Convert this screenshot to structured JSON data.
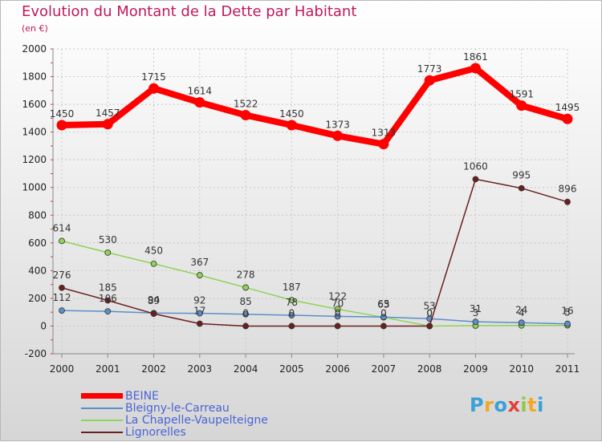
{
  "chart_data": {
    "type": "line",
    "title": "Evolution du Montant de la Dette par Habitant",
    "subtitle": "(en €)",
    "x": [
      "2000",
      "2001",
      "2002",
      "2003",
      "2004",
      "2005",
      "2006",
      "2007",
      "2008",
      "2009",
      "2010",
      "2011"
    ],
    "ylim": [
      -200,
      2000
    ],
    "yticks": [
      -200,
      0,
      200,
      400,
      600,
      800,
      1000,
      1200,
      1400,
      1600,
      1800,
      2000
    ],
    "grid": true,
    "legend_position": "bottom-left",
    "series": [
      {
        "name": "BEINE",
        "color": "#ff0000",
        "values": [
          1450,
          1457,
          1715,
          1614,
          1522,
          1450,
          1373,
          1313,
          1773,
          1861,
          1591,
          1495
        ],
        "labels": [
          "1450",
          "1457",
          "1715",
          "1614",
          "1522",
          "1450",
          "1373",
          "1313",
          "1773",
          "1861",
          "1591",
          "1495"
        ]
      },
      {
        "name": "Bleigny-le-Carreau",
        "color": "#5b8fc9",
        "values": [
          112,
          106,
          94,
          92,
          85,
          78,
          70,
          65,
          53,
          31,
          24,
          16
        ],
        "labels": [
          "112",
          "106",
          "94",
          "92",
          "85",
          "78",
          "70",
          "65",
          "53",
          "31",
          "24",
          "16"
        ]
      },
      {
        "name": "La Chapelle-Vaupelteigne",
        "color": "#8fd35a",
        "values": [
          614,
          530,
          450,
          367,
          278,
          187,
          122,
          63,
          0,
          3,
          4,
          5
        ],
        "labels": [
          "614",
          "530",
          "450",
          "367",
          "278",
          "187",
          "122",
          "63",
          "0",
          "3",
          "4",
          "5"
        ]
      },
      {
        "name": "Lignorelles",
        "color": "#6b1f1f",
        "values": [
          276,
          185,
          89,
          17,
          0,
          0,
          0,
          0,
          0,
          1060,
          995,
          896
        ],
        "labels": [
          "276",
          "185",
          "89",
          "17",
          "0",
          "0",
          "0",
          "0",
          "0",
          "1060",
          "995",
          "896"
        ]
      }
    ]
  },
  "logo": {
    "text": "Proxiti"
  }
}
